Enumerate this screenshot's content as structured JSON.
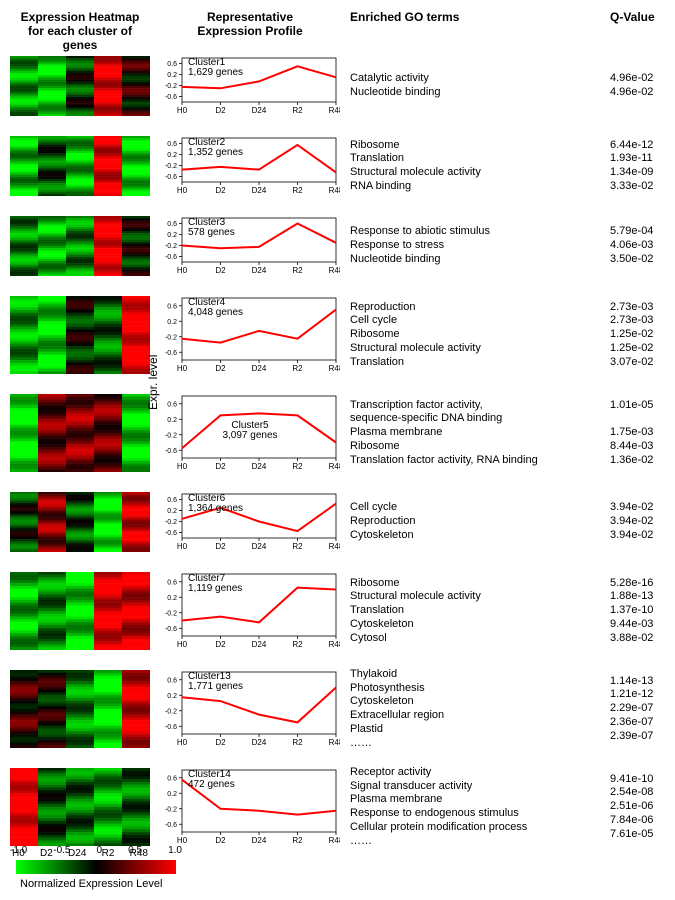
{
  "headers": {
    "heatmap": "Expression Heatmap\nfor each cluster of genes",
    "profile": "Representative\nExpression Profile",
    "go": "Enriched GO terms",
    "q": "Q-Value"
  },
  "timepoints": [
    "H0",
    "D2",
    "D24",
    "R2",
    "R48"
  ],
  "profile_style": {
    "line_color": "#ff0000",
    "line_width": 2,
    "axis_color": "#000000",
    "ylim": [
      -0.8,
      0.8
    ],
    "yticks": [
      -0.6,
      -0.2,
      0.2,
      0.6
    ],
    "tick_fontsize": 7
  },
  "heatmap_palette": {
    "neg": "#00ff00",
    "mid": "#000000",
    "pos": "#ff0000"
  },
  "clusters": [
    {
      "id": "Cluster1",
      "n_genes": "1,629 genes",
      "profile": [
        -0.25,
        -0.3,
        -0.05,
        0.5,
        0.1
      ],
      "heatmap_cols": [
        -0.6,
        -0.8,
        -0.2,
        0.9,
        0.1
      ],
      "go": [
        "Catalytic activity",
        "Nucleotide binding"
      ],
      "q": [
        "4.96e-02",
        "4.96e-02"
      ]
    },
    {
      "id": "Cluster2",
      "n_genes": "1,352 genes",
      "profile": [
        -0.35,
        -0.25,
        -0.35,
        0.55,
        -0.45
      ],
      "heatmap_cols": [
        -0.7,
        -0.3,
        -0.7,
        0.9,
        -0.8
      ],
      "go": [
        "Ribosome",
        "Translation",
        "Structural molecule activity",
        "RNA binding"
      ],
      "q": [
        "6.44e-12",
        "1.93e-11",
        "1.34e-09",
        "3.33e-02"
      ]
    },
    {
      "id": "Cluster3",
      "n_genes": "578 genes",
      "profile": [
        -0.2,
        -0.3,
        -0.25,
        0.6,
        -0.1
      ],
      "heatmap_cols": [
        -0.5,
        -0.7,
        -0.5,
        1.0,
        -0.1
      ],
      "go": [
        "Response to abiotic stimulus",
        "Response to stress",
        "Nucleotide binding"
      ],
      "q": [
        "5.79e-04",
        "4.06e-03",
        "3.50e-02"
      ]
    },
    {
      "id": "Cluster4",
      "n_genes": "4,048 genes",
      "profile": [
        -0.25,
        -0.35,
        -0.05,
        -0.25,
        0.5
      ],
      "heatmap_cols": [
        -0.6,
        -0.8,
        -0.1,
        -0.4,
        1.0
      ],
      "go": [
        "Reproduction",
        "Cell cycle",
        "Ribosome",
        "Structural molecule activity",
        "Translation"
      ],
      "q": [
        "2.73e-03",
        "2.73e-03",
        "1.25e-02",
        "1.25e-02",
        "3.07e-02"
      ],
      "tall": true
    },
    {
      "id": "Cluster5",
      "n_genes": "3,097 genes",
      "profile": [
        -0.55,
        0.3,
        0.35,
        0.3,
        -0.4
      ],
      "heatmap_cols": [
        -0.9,
        0.4,
        0.5,
        0.4,
        -0.8
      ],
      "label_center": true,
      "go": [
        "Transcription factor activity,\nsequence-specific DNA binding",
        "Plasma membrane",
        "Ribosome",
        "Translation factor activity, RNA binding"
      ],
      "q": [
        "1.01e-05",
        "",
        "1.75e-03",
        "8.44e-03",
        "1.36e-02"
      ],
      "tall": true
    },
    {
      "id": "Cluster6",
      "n_genes": "1,364 genes",
      "profile": [
        -0.1,
        0.3,
        -0.2,
        -0.55,
        0.45
      ],
      "heatmap_cols": [
        -0.2,
        0.5,
        -0.3,
        -0.9,
        0.8
      ],
      "go": [
        "Cell cycle",
        "Reproduction",
        "Cytoskeleton"
      ],
      "q": [
        "3.94e-02",
        "3.94e-02",
        "3.94e-02"
      ]
    },
    {
      "id": "Cluster7",
      "n_genes": "1,119 genes",
      "profile": [
        -0.4,
        -0.3,
        -0.45,
        0.45,
        0.4
      ],
      "heatmap_cols": [
        -0.7,
        -0.5,
        -0.8,
        0.9,
        0.8
      ],
      "go": [
        "Ribosome",
        "Structural molecule activity",
        "Translation",
        "Cytoskeleton",
        "Cytosol"
      ],
      "q": [
        "5.28e-16",
        "1.88e-13",
        "1.37e-10",
        "9.44e-03",
        "3.88e-02"
      ],
      "tall": true
    },
    {
      "id": "Cluster13",
      "n_genes": "1,771 genes",
      "profile": [
        0.15,
        0.05,
        -0.3,
        -0.5,
        0.4
      ],
      "heatmap_cols": [
        0.2,
        0.0,
        -0.5,
        -0.9,
        0.8
      ],
      "go": [
        "Thylakoid",
        "Photosynthesis",
        "Cytoskeleton",
        "Extracellular region",
        "Plastid",
        "……"
      ],
      "q": [
        "1.14e-13",
        "1.21e-12",
        "2.29e-07",
        "2.36e-07",
        "2.39e-07",
        ""
      ],
      "tall": true
    },
    {
      "id": "Cluster14",
      "n_genes": "472 genes",
      "profile": [
        0.55,
        -0.2,
        -0.25,
        -0.35,
        -0.25
      ],
      "heatmap_cols": [
        1.0,
        -0.3,
        -0.4,
        -0.6,
        -0.4
      ],
      "go": [
        "Receptor activity",
        "Signal transducer activity",
        "Plasma membrane",
        "Response to endogenous stimulus",
        "Cellular protein modification process",
        "……"
      ],
      "q": [
        "9.41e-10",
        "2.54e-08",
        "2.51e-06",
        "7.84e-06",
        "7.61e-05",
        ""
      ],
      "tall": true
    }
  ],
  "legend": {
    "ticks": [
      "-1.0",
      "-0.5",
      "0",
      "0.5",
      "1.0"
    ],
    "title": "Normalized Expression Level"
  },
  "ylabel": "Expr. level"
}
